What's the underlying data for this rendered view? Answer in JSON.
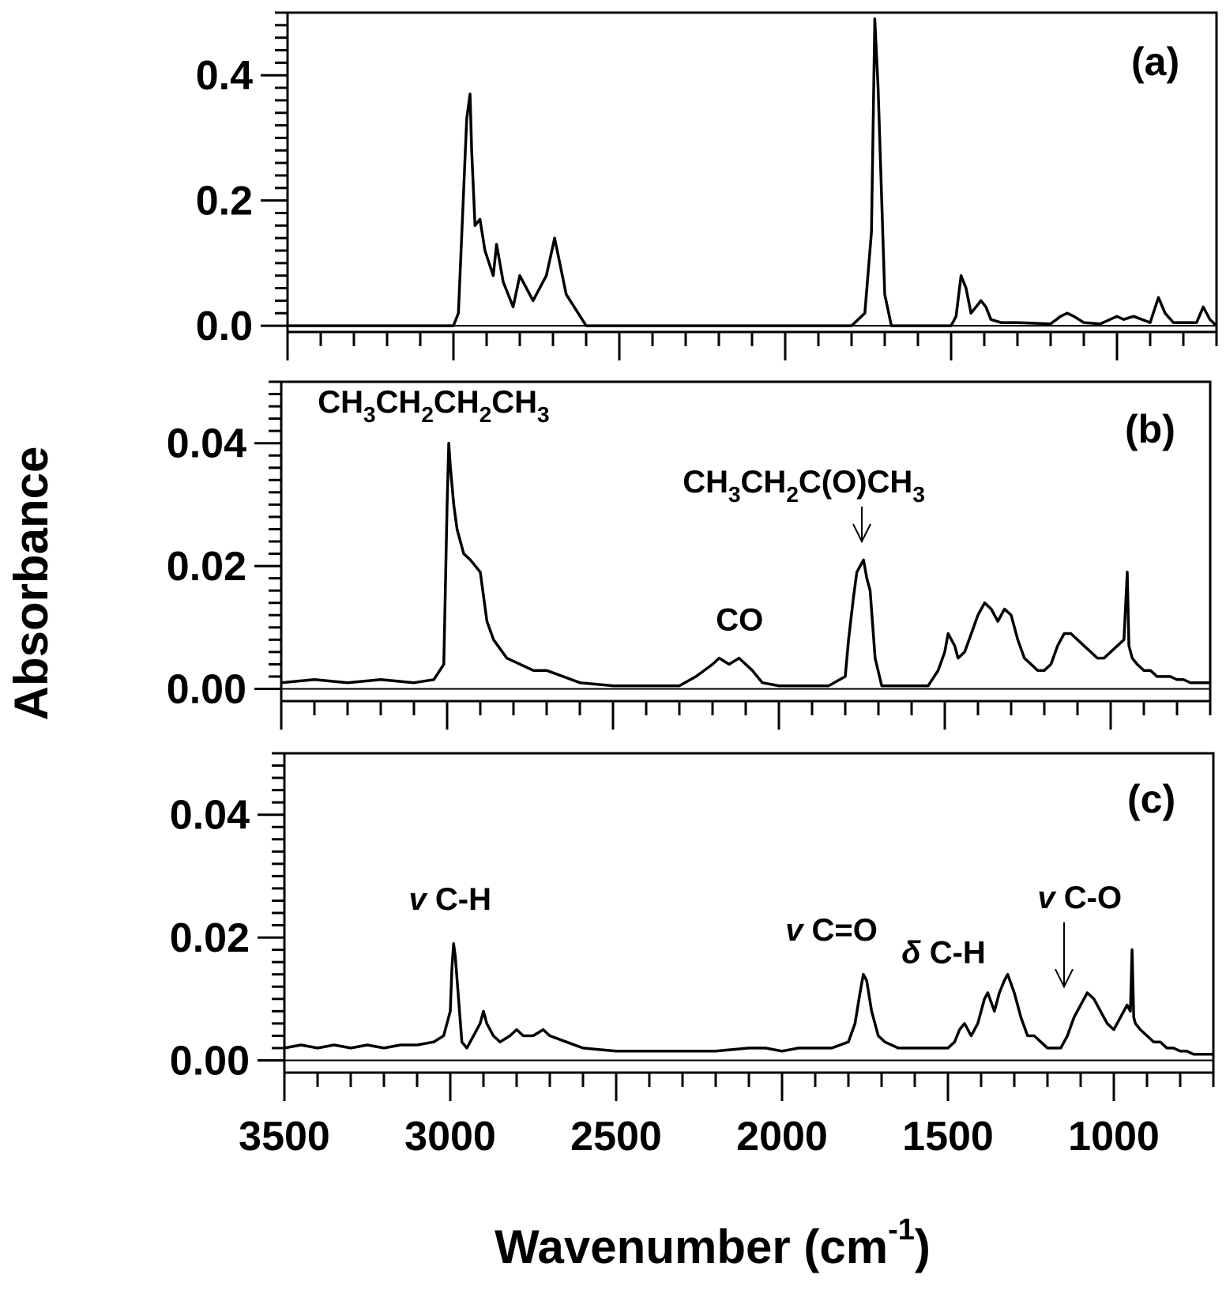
{
  "figure": {
    "ylabel": "Absorbance",
    "xlabel": "Wavenumber (cm",
    "xlabel_sup": "-1",
    "xlabel_close": ")",
    "x_axis_reversed": true,
    "x_ticks": [
      "3500",
      "3000",
      "2500",
      "2000",
      "1500",
      "1000"
    ]
  },
  "chart_data": [
    {
      "type": "line",
      "panel_label": "(a)",
      "xlim": [
        3500,
        700
      ],
      "ylim": [
        -0.01,
        0.5
      ],
      "y_ticks": [
        "0.4",
        "0.2",
        "0.0"
      ],
      "annotations": [],
      "series": [
        {
          "x": [
            3500,
            3000,
            2985,
            2960,
            2950,
            2945,
            2935,
            2920,
            2905,
            2880,
            2870,
            2850,
            2820,
            2800,
            2790,
            2760,
            2720,
            2695,
            2660,
            2600,
            1800,
            1760,
            1740,
            1730,
            1720,
            1700,
            1680,
            1500,
            1485,
            1470,
            1455,
            1440,
            1410,
            1395,
            1380,
            1350,
            1300,
            1200,
            1170,
            1150,
            1130,
            1100,
            1050,
            1000,
            980,
            950,
            900,
            875,
            855,
            830,
            800,
            760,
            740,
            720,
            700
          ],
          "y": [
            0.0,
            0.0,
            0.02,
            0.33,
            0.37,
            0.28,
            0.16,
            0.17,
            0.12,
            0.08,
            0.13,
            0.07,
            0.03,
            0.08,
            0.07,
            0.04,
            0.08,
            0.14,
            0.05,
            0.0,
            0.0,
            0.02,
            0.15,
            0.49,
            0.38,
            0.05,
            0.0,
            0.0,
            0.015,
            0.08,
            0.06,
            0.02,
            0.04,
            0.03,
            0.01,
            0.005,
            0.005,
            0.003,
            0.015,
            0.02,
            0.015,
            0.005,
            0.003,
            0.015,
            0.01,
            0.015,
            0.005,
            0.045,
            0.02,
            0.005,
            0.005,
            0.005,
            0.03,
            0.01,
            0.0
          ]
        }
      ]
    },
    {
      "type": "line",
      "panel_label": "(b)",
      "xlim": [
        3500,
        700
      ],
      "ylim": [
        -0.002,
        0.05
      ],
      "y_ticks": [
        "0.04",
        "0.02",
        "0.00"
      ],
      "annotations": [
        {
          "label": "CH",
          "subs": [
            "3",
            "CH",
            "2",
            "CH",
            "2",
            "CH",
            "3"
          ],
          "x": 3390,
          "y": 0.045
        },
        {
          "label": "CH",
          "subs": [
            "3",
            "CH",
            "2",
            "C(O)CH",
            "3"
          ],
          "x": 2290,
          "y": 0.032,
          "arrow_to": [
            1750,
            0.024
          ]
        },
        {
          "label": "CO",
          "x": 2190,
          "y": 0.0095
        }
      ],
      "series": [
        {
          "x": [
            3500,
            3400,
            3300,
            3200,
            3100,
            3040,
            3010,
            3000,
            2995,
            2990,
            2980,
            2970,
            2950,
            2930,
            2900,
            2880,
            2860,
            2820,
            2780,
            2740,
            2700,
            2650,
            2600,
            2500,
            2400,
            2300,
            2250,
            2200,
            2180,
            2150,
            2120,
            2100,
            2080,
            2050,
            2000,
            1900,
            1850,
            1800,
            1790,
            1775,
            1765,
            1755,
            1745,
            1735,
            1725,
            1710,
            1690,
            1650,
            1600,
            1550,
            1520,
            1500,
            1490,
            1480,
            1470,
            1460,
            1440,
            1420,
            1400,
            1390,
            1380,
            1360,
            1340,
            1320,
            1300,
            1280,
            1260,
            1240,
            1220,
            1200,
            1180,
            1160,
            1140,
            1120,
            1100,
            1080,
            1060,
            1040,
            1020,
            1000,
            980,
            960,
            950,
            945,
            940,
            935,
            920,
            900,
            880,
            860,
            840,
            820,
            800,
            780,
            760,
            740,
            720,
            700
          ],
          "y": [
            0.001,
            0.0015,
            0.001,
            0.0015,
            0.001,
            0.0015,
            0.004,
            0.03,
            0.04,
            0.036,
            0.03,
            0.026,
            0.022,
            0.021,
            0.019,
            0.011,
            0.008,
            0.005,
            0.004,
            0.003,
            0.003,
            0.002,
            0.001,
            0.0005,
            0.0005,
            0.0005,
            0.002,
            0.004,
            0.005,
            0.004,
            0.005,
            0.004,
            0.003,
            0.001,
            0.0005,
            0.0005,
            0.0005,
            0.002,
            0.008,
            0.015,
            0.019,
            0.02,
            0.021,
            0.018,
            0.016,
            0.005,
            0.0005,
            0.0005,
            0.0005,
            0.0005,
            0.003,
            0.006,
            0.009,
            0.008,
            0.007,
            0.005,
            0.006,
            0.009,
            0.012,
            0.013,
            0.014,
            0.013,
            0.011,
            0.013,
            0.012,
            0.008,
            0.005,
            0.004,
            0.003,
            0.003,
            0.004,
            0.007,
            0.009,
            0.009,
            0.008,
            0.007,
            0.006,
            0.005,
            0.005,
            0.006,
            0.007,
            0.008,
            0.019,
            0.007,
            0.006,
            0.005,
            0.004,
            0.003,
            0.003,
            0.002,
            0.002,
            0.002,
            0.0015,
            0.0015,
            0.001,
            0.001,
            0.001,
            0.001
          ]
        }
      ]
    },
    {
      "type": "line",
      "panel_label": "(c)",
      "xlim": [
        3500,
        700
      ],
      "ylim": [
        -0.002,
        0.05
      ],
      "y_ticks": [
        "0.04",
        "0.02",
        "0.00"
      ],
      "annotations": [
        {
          "symbol": "v",
          "label": "C-H",
          "x": 3125,
          "y": 0.0245
        },
        {
          "symbol": "v",
          "label": "C=O",
          "x": 1990,
          "y": 0.0195
        },
        {
          "symbol": "δ",
          "label": "C-H",
          "x": 1640,
          "y": 0.0158
        },
        {
          "symbol": "v",
          "label": "C-O",
          "x": 1230,
          "y": 0.0248,
          "arrow_to": [
            1150,
            0.012
          ]
        }
      ],
      "series": [
        {
          "x": [
            3500,
            3450,
            3400,
            3350,
            3300,
            3250,
            3200,
            3150,
            3100,
            3050,
            3020,
            3000,
            2995,
            2990,
            2985,
            2975,
            2965,
            2950,
            2930,
            2910,
            2900,
            2890,
            2870,
            2850,
            2820,
            2800,
            2780,
            2750,
            2720,
            2700,
            2650,
            2600,
            2500,
            2400,
            2300,
            2200,
            2100,
            2050,
            2000,
            1950,
            1900,
            1850,
            1800,
            1780,
            1765,
            1755,
            1745,
            1730,
            1710,
            1690,
            1650,
            1600,
            1550,
            1500,
            1480,
            1465,
            1450,
            1430,
            1410,
            1400,
            1390,
            1380,
            1360,
            1345,
            1330,
            1320,
            1300,
            1280,
            1260,
            1240,
            1220,
            1200,
            1180,
            1160,
            1140,
            1120,
            1100,
            1080,
            1060,
            1040,
            1020,
            1000,
            980,
            960,
            950,
            945,
            940,
            935,
            920,
            900,
            880,
            860,
            840,
            820,
            800,
            780,
            760,
            740,
            720,
            700
          ],
          "y": [
            0.002,
            0.0025,
            0.002,
            0.0025,
            0.002,
            0.0025,
            0.002,
            0.0025,
            0.0025,
            0.003,
            0.004,
            0.008,
            0.015,
            0.019,
            0.017,
            0.01,
            0.003,
            0.002,
            0.004,
            0.006,
            0.008,
            0.006,
            0.004,
            0.003,
            0.004,
            0.005,
            0.004,
            0.004,
            0.005,
            0.004,
            0.003,
            0.002,
            0.0015,
            0.0015,
            0.0015,
            0.0015,
            0.002,
            0.002,
            0.0015,
            0.002,
            0.002,
            0.002,
            0.003,
            0.006,
            0.011,
            0.014,
            0.013,
            0.008,
            0.004,
            0.003,
            0.002,
            0.002,
            0.002,
            0.002,
            0.003,
            0.005,
            0.006,
            0.004,
            0.006,
            0.008,
            0.01,
            0.011,
            0.008,
            0.011,
            0.013,
            0.014,
            0.011,
            0.007,
            0.004,
            0.004,
            0.003,
            0.002,
            0.002,
            0.002,
            0.004,
            0.007,
            0.009,
            0.011,
            0.01,
            0.008,
            0.006,
            0.005,
            0.007,
            0.009,
            0.008,
            0.018,
            0.007,
            0.006,
            0.005,
            0.004,
            0.003,
            0.003,
            0.002,
            0.002,
            0.0015,
            0.0015,
            0.001,
            0.001,
            0.001,
            0.001
          ]
        }
      ]
    }
  ]
}
